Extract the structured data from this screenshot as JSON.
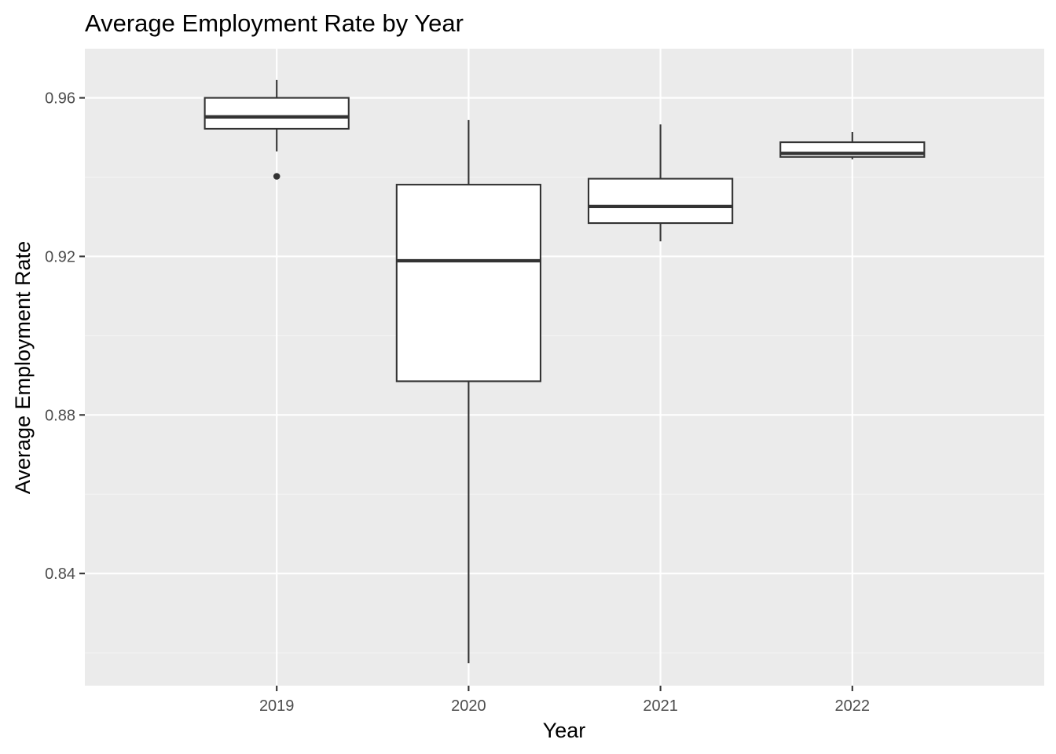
{
  "chart_data": {
    "type": "boxplot",
    "title": "Average Employment Rate by Year",
    "xlabel": "Year",
    "ylabel": "Average Employment Rate",
    "ylim": [
      0.8117,
      0.9724
    ],
    "yticks": [
      0.84,
      0.88,
      0.92,
      0.96
    ],
    "ytick_labels": [
      "0.84",
      "0.88",
      "0.92",
      "0.96"
    ],
    "categories": [
      "2019",
      "2020",
      "2021",
      "2022"
    ],
    "grid": true,
    "legend": "none",
    "colors": {
      "panel_background": "#ebebeb",
      "grid_major": "#ffffff",
      "grid_minor": "#f5f5f5",
      "box_fill": "#ffffff",
      "box_line": "#333333",
      "tick_label": "#4d4d4d",
      "tick_mark": "#333333"
    },
    "boxes": [
      {
        "category": "2019",
        "whisker_low": 0.9465,
        "q1": 0.9522,
        "median": 0.9552,
        "q3": 0.96,
        "whisker_high": 0.9645,
        "outliers": [
          0.9402
        ]
      },
      {
        "category": "2020",
        "whisker_low": 0.8174,
        "q1": 0.8885,
        "median": 0.9189,
        "q3": 0.9381,
        "whisker_high": 0.9544,
        "outliers": []
      },
      {
        "category": "2021",
        "whisker_low": 0.9238,
        "q1": 0.9284,
        "median": 0.9326,
        "q3": 0.9396,
        "whisker_high": 0.9533,
        "outliers": []
      },
      {
        "category": "2022",
        "whisker_low": 0.9445,
        "q1": 0.9451,
        "median": 0.946,
        "q3": 0.9488,
        "whisker_high": 0.9514,
        "outliers": []
      }
    ]
  }
}
